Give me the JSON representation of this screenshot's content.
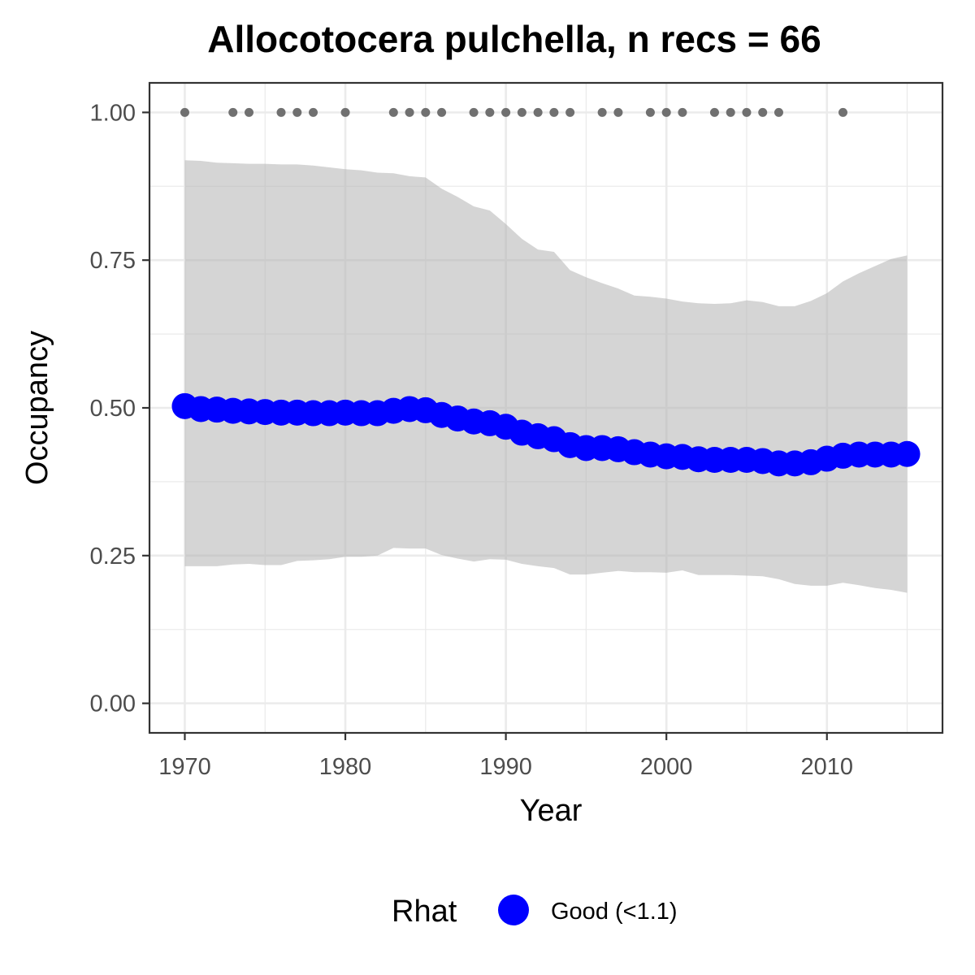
{
  "chart_data": {
    "type": "line",
    "title": "Allocotocera pulchella, n recs = 66",
    "xlabel": "Year",
    "ylabel": "Occupancy",
    "xlim": [
      1967.8,
      2017.2
    ],
    "ylim": [
      -0.05,
      1.05
    ],
    "x_ticks": [
      1970,
      1980,
      1990,
      2000,
      2010
    ],
    "x_tick_labels": [
      "1970",
      "1980",
      "1990",
      "2000",
      "2010"
    ],
    "y_ticks": [
      0,
      0.25,
      0.5,
      0.75,
      1.0
    ],
    "y_tick_labels": [
      "0.00",
      "0.25",
      "0.50",
      "0.75",
      "1.00"
    ],
    "grid": true,
    "x": [
      1970,
      1971,
      1972,
      1973,
      1974,
      1975,
      1976,
      1977,
      1978,
      1979,
      1980,
      1981,
      1982,
      1983,
      1984,
      1985,
      1986,
      1987,
      1988,
      1989,
      1990,
      1991,
      1992,
      1993,
      1994,
      1995,
      1996,
      1997,
      1998,
      1999,
      2000,
      2001,
      2002,
      2003,
      2004,
      2005,
      2006,
      2007,
      2008,
      2009,
      2010,
      2011,
      2012,
      2013,
      2014,
      2015
    ],
    "occupancy": [
      0.503,
      0.498,
      0.497,
      0.495,
      0.494,
      0.493,
      0.492,
      0.492,
      0.491,
      0.491,
      0.492,
      0.491,
      0.491,
      0.495,
      0.498,
      0.496,
      0.488,
      0.482,
      0.477,
      0.474,
      0.468,
      0.458,
      0.452,
      0.447,
      0.437,
      0.432,
      0.432,
      0.43,
      0.425,
      0.421,
      0.418,
      0.417,
      0.413,
      0.412,
      0.412,
      0.412,
      0.41,
      0.406,
      0.406,
      0.408,
      0.414,
      0.419,
      0.421,
      0.421,
      0.421,
      0.422
    ],
    "upper_ci": [
      0.919,
      0.918,
      0.915,
      0.914,
      0.913,
      0.913,
      0.912,
      0.912,
      0.91,
      0.907,
      0.904,
      0.902,
      0.898,
      0.897,
      0.892,
      0.89,
      0.871,
      0.857,
      0.841,
      0.834,
      0.811,
      0.786,
      0.768,
      0.764,
      0.733,
      0.721,
      0.711,
      0.702,
      0.69,
      0.688,
      0.685,
      0.68,
      0.677,
      0.676,
      0.677,
      0.682,
      0.679,
      0.672,
      0.672,
      0.681,
      0.694,
      0.714,
      0.728,
      0.74,
      0.752,
      0.758
    ],
    "lower_ci": [
      0.232,
      0.232,
      0.232,
      0.235,
      0.236,
      0.234,
      0.234,
      0.241,
      0.242,
      0.244,
      0.248,
      0.248,
      0.25,
      0.263,
      0.262,
      0.262,
      0.251,
      0.245,
      0.24,
      0.244,
      0.243,
      0.236,
      0.232,
      0.229,
      0.218,
      0.218,
      0.221,
      0.224,
      0.222,
      0.222,
      0.221,
      0.225,
      0.217,
      0.217,
      0.217,
      0.216,
      0.215,
      0.21,
      0.202,
      0.199,
      0.199,
      0.204,
      0.2,
      0.195,
      0.192,
      0.187
    ],
    "record_years": [
      1970,
      1973,
      1974,
      1976,
      1977,
      1978,
      1980,
      1983,
      1984,
      1985,
      1986,
      1988,
      1989,
      1990,
      1991,
      1992,
      1993,
      1994,
      1996,
      1997,
      1999,
      2000,
      2001,
      2003,
      2004,
      2005,
      2006,
      2007,
      2011
    ],
    "record_value": 1.0,
    "legend": {
      "title": "Rhat",
      "entries": [
        {
          "label": "Good (<1.1)",
          "color": "#0000ff"
        }
      ],
      "position": "bottom"
    },
    "colors": {
      "line_points": "#0000ff",
      "ribbon": "#d6d6d6",
      "record_points": "#707070",
      "grid": "#ebebeb",
      "panel_border": "#333333"
    }
  }
}
